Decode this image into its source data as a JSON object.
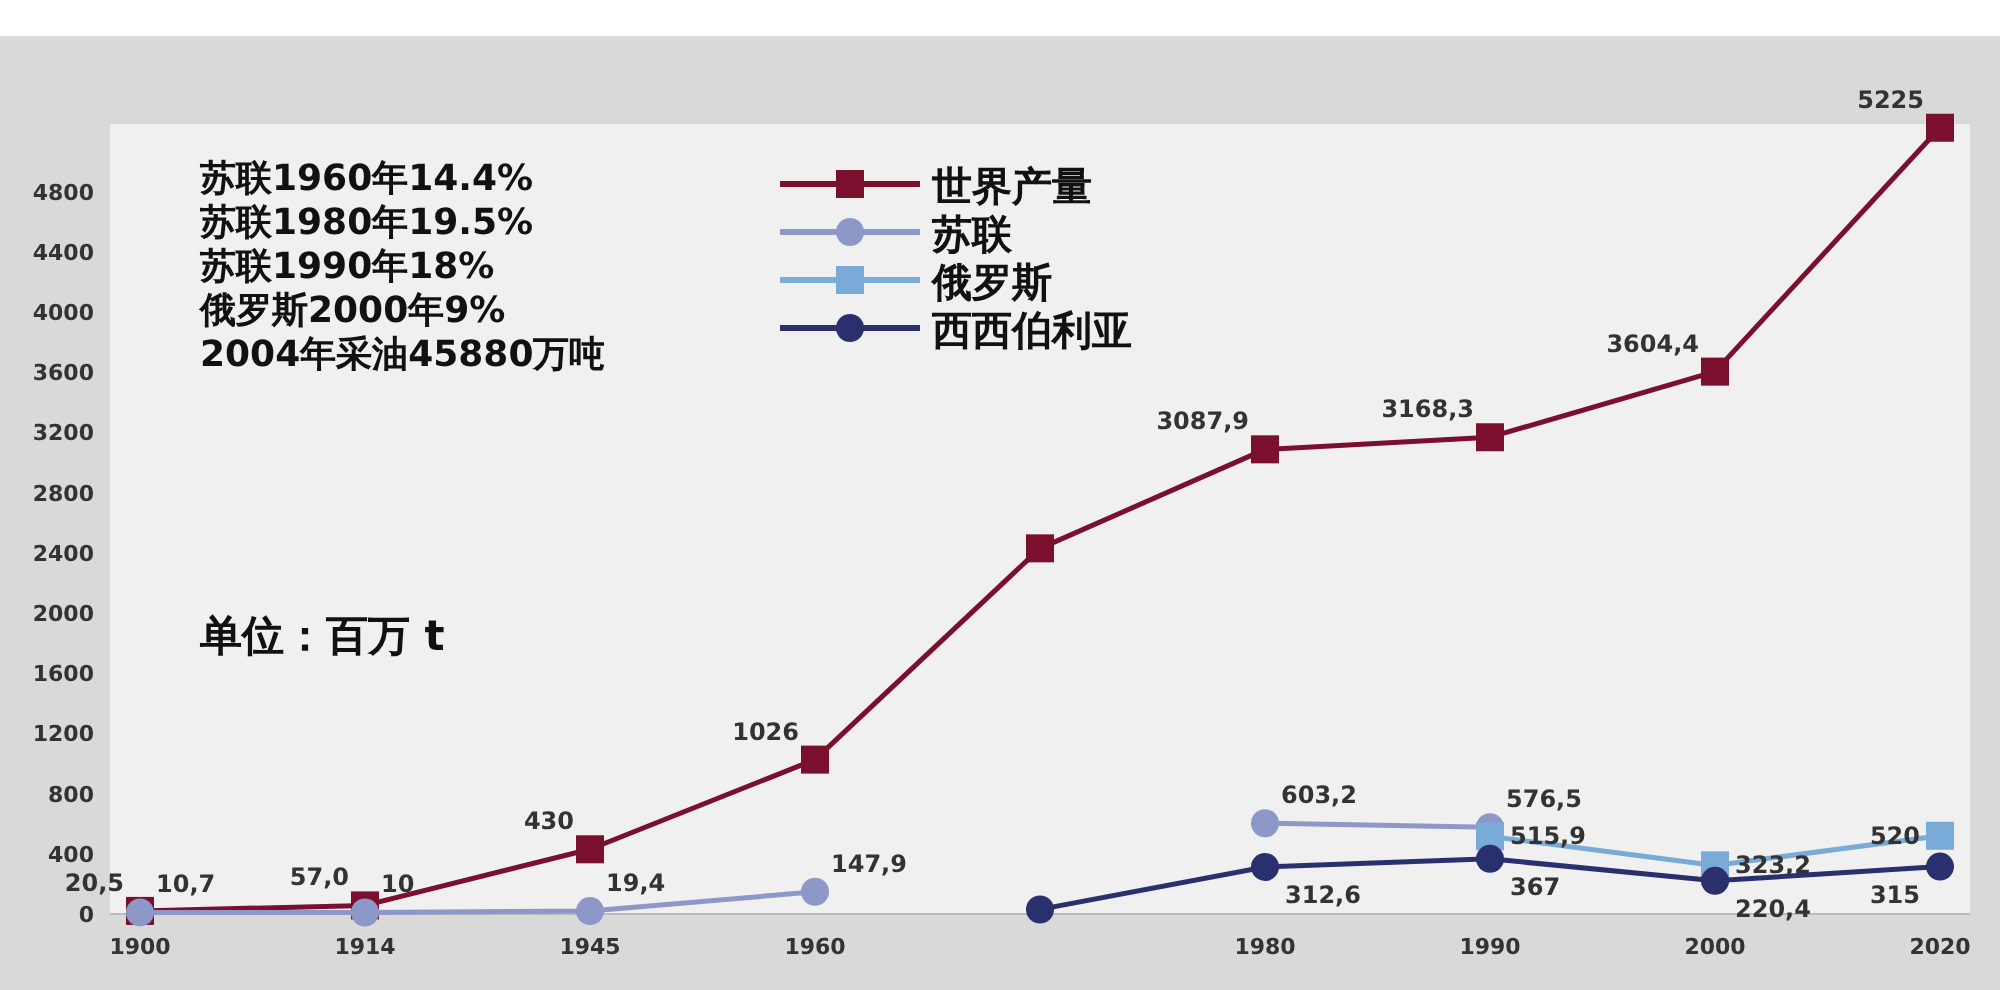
{
  "chart_data": {
    "type": "line",
    "categories": [
      "1900",
      "1914",
      "1945",
      "1960",
      null,
      "1980",
      "1990",
      "2000",
      "2020"
    ],
    "series": [
      {
        "name": "世界产量",
        "color": "#7a0f2e",
        "marker": "square",
        "values": [
          20.5,
          57.0,
          430,
          1026,
          2430,
          3087.9,
          3168.3,
          3604.4,
          5225
        ],
        "value_labels": [
          "20,5",
          "57,0",
          "430",
          "1026",
          null,
          "3087,9",
          "3168,3",
          "3604,4",
          "5225"
        ]
      },
      {
        "name": "苏联",
        "color": "#8e98c8",
        "marker": "circle",
        "values": [
          10.7,
          10,
          19.4,
          147.9,
          null,
          603.2,
          576.5,
          null,
          null
        ],
        "value_labels": [
          "10,7",
          "10",
          "19,4",
          "147,9",
          null,
          "603,2",
          "576,5",
          null,
          null
        ]
      },
      {
        "name": "俄罗斯",
        "color": "#7aaad8",
        "marker": "square",
        "values": [
          null,
          null,
          null,
          null,
          null,
          null,
          515.9,
          323.2,
          520
        ],
        "value_labels": [
          null,
          null,
          null,
          null,
          null,
          null,
          "515,9",
          "323,2",
          "520"
        ]
      },
      {
        "name": "西西伯利亚",
        "color": "#2a2f6e",
        "marker": "circle",
        "values": [
          null,
          null,
          null,
          null,
          30,
          312.6,
          367,
          220.4,
          315
        ],
        "value_labels": [
          null,
          null,
          null,
          null,
          null,
          "312,6",
          "367",
          "220,4",
          "315"
        ]
      }
    ],
    "ylim": [
      0,
      5250
    ],
    "yticks": [
      0,
      400,
      800,
      1200,
      1600,
      2000,
      2400,
      2800,
      3200,
      3600,
      4000,
      4400,
      4800
    ],
    "legend": "top",
    "annotations": [
      "苏联1960年14.4%",
      "苏联1980年19.5%",
      "苏联1990年18%",
      "俄罗斯2000年9%",
      "2004年采油45880万吨",
      "单位：百万 t"
    ]
  }
}
